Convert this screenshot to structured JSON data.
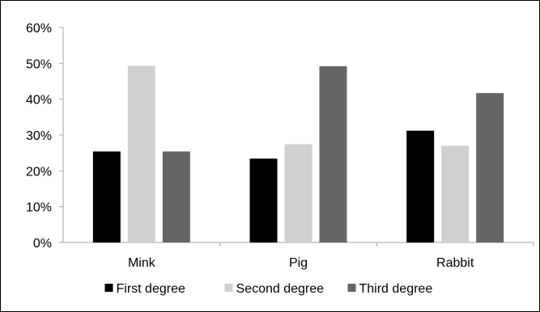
{
  "chart_data": {
    "type": "bar",
    "title": "",
    "xlabel": "",
    "ylabel": "",
    "categories": [
      "Mink",
      "Pig",
      "Rabbit"
    ],
    "series": [
      {
        "name": "First degree",
        "color": "#000000",
        "values": [
          25.4,
          23.4,
          31.2
        ]
      },
      {
        "name": "Second degree",
        "color": "#d0d0d0",
        "values": [
          49.3,
          27.4,
          27.0
        ]
      },
      {
        "name": "Third degree",
        "color": "#666666",
        "values": [
          25.4,
          49.2,
          41.7
        ]
      }
    ],
    "ylim": [
      0,
      60
    ],
    "yticks": [
      0,
      10,
      20,
      30,
      40,
      50,
      60
    ],
    "ytick_labels": [
      "0%",
      "10%",
      "20%",
      "30%",
      "40%",
      "50%",
      "60%"
    ],
    "grid": false,
    "legend_position": "bottom"
  }
}
